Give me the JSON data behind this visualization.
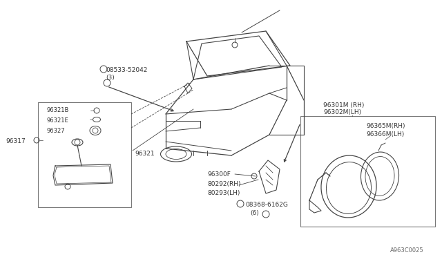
{
  "bg_color": "#ffffff",
  "line_color": "#444444",
  "text_color": "#333333",
  "font_size": 6.5,
  "diagram_id": "A963C0025",
  "labels": {
    "screw1": "08533-52042",
    "screw1_sub": "(3)",
    "interior_mirror": "96321",
    "part_96321B": "96321B",
    "part_96321E": "96321E",
    "part_96327": "96327",
    "part_96317": "96317",
    "ext_top1": "96301M (RH)",
    "ext_top2": "96302M(LH)",
    "ext_in1": "96365M(RH)",
    "ext_in2": "96366M(LH)",
    "door_clip": "96300F",
    "door_rh": "80292(RH)",
    "door_lh": "80293(LH)",
    "screw2": "08368-6162G",
    "screw2_sub": "(6)"
  }
}
